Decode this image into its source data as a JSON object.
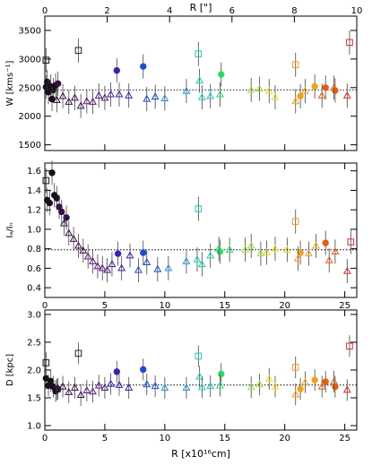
{
  "chart_data": [
    {
      "id": "W",
      "type": "scatter",
      "ylabel": "W [kms⁻¹]",
      "ylim": [
        1400,
        3750
      ],
      "yticks": [
        1500,
        2000,
        2500,
        3000,
        3500
      ],
      "reference_line": 2460,
      "series": [
        {
          "marker": "circle",
          "points": [
            [
              0.1,
              2510
            ],
            [
              0.2,
              2600
            ],
            [
              0.3,
              2420
            ],
            [
              0.5,
              2520
            ],
            [
              0.7,
              2460
            ],
            [
              0.9,
              2540
            ],
            [
              1.1,
              2570
            ],
            [
              0.6,
              2300
            ],
            [
              6.0,
              2800
            ],
            [
              8.2,
              2870
            ],
            [
              14.7,
              2730
            ],
            [
              21.3,
              2350
            ],
            [
              22.5,
              2520
            ],
            [
              23.4,
              2500
            ],
            [
              24.2,
              2450
            ]
          ]
        },
        {
          "marker": "square",
          "points": [
            [
              0.1,
              2980
            ],
            [
              2.8,
              3150
            ],
            [
              12.8,
              3090
            ],
            [
              20.9,
              2900
            ],
            [
              25.4,
              3290
            ]
          ]
        },
        {
          "marker": "triangle",
          "points": [
            [
              1.0,
              2280
            ],
            [
              1.5,
              2350
            ],
            [
              2.0,
              2250
            ],
            [
              2.5,
              2320
            ],
            [
              3.0,
              2180
            ],
            [
              3.5,
              2260
            ],
            [
              4.0,
              2250
            ],
            [
              4.5,
              2360
            ],
            [
              5.0,
              2320
            ],
            [
              5.5,
              2380
            ],
            [
              6.2,
              2380
            ],
            [
              7.0,
              2360
            ],
            [
              8.5,
              2300
            ],
            [
              9.2,
              2340
            ],
            [
              10.0,
              2310
            ],
            [
              11.8,
              2440
            ],
            [
              12.9,
              2620
            ],
            [
              13.1,
              2330
            ],
            [
              13.8,
              2350
            ],
            [
              14.6,
              2380
            ],
            [
              17.2,
              2460
            ],
            [
              17.9,
              2480
            ],
            [
              18.7,
              2440
            ],
            [
              19.2,
              2330
            ],
            [
              20.9,
              2260
            ],
            [
              21.7,
              2440
            ],
            [
              23.1,
              2360
            ],
            [
              24.1,
              2500
            ],
            [
              25.2,
              2360
            ]
          ]
        }
      ]
    },
    {
      "id": "ratio",
      "type": "scatter",
      "ylabel": "Iₐ/Iₙ",
      "ylim": [
        0.3,
        1.68
      ],
      "yticks": [
        0.4,
        0.6,
        0.8,
        1.0,
        1.2,
        1.4,
        1.6
      ],
      "reference_line": 0.79,
      "series": [
        {
          "marker": "circle",
          "points": [
            [
              0.2,
              1.3
            ],
            [
              0.4,
              1.27
            ],
            [
              0.6,
              1.58
            ],
            [
              0.8,
              1.35
            ],
            [
              1.0,
              1.32
            ],
            [
              1.2,
              1.23
            ],
            [
              1.4,
              1.18
            ],
            [
              1.8,
              1.12
            ],
            [
              6.1,
              0.75
            ],
            [
              8.2,
              0.76
            ],
            [
              14.6,
              0.77
            ],
            [
              21.3,
              0.76
            ],
            [
              23.4,
              0.86
            ]
          ]
        },
        {
          "marker": "square",
          "points": [
            [
              0.1,
              1.5
            ],
            [
              12.8,
              1.21
            ],
            [
              20.9,
              1.08
            ],
            [
              25.5,
              0.87
            ]
          ]
        },
        {
          "marker": "triangle",
          "points": [
            [
              1.6,
              1.06
            ],
            [
              2.0,
              0.96
            ],
            [
              2.4,
              0.9
            ],
            [
              2.8,
              0.83
            ],
            [
              3.2,
              0.78
            ],
            [
              3.6,
              0.72
            ],
            [
              4.0,
              0.67
            ],
            [
              4.4,
              0.62
            ],
            [
              4.8,
              0.6
            ],
            [
              5.2,
              0.58
            ],
            [
              5.6,
              0.64
            ],
            [
              6.4,
              0.6
            ],
            [
              7.1,
              0.73
            ],
            [
              7.8,
              0.58
            ],
            [
              8.5,
              0.66
            ],
            [
              9.4,
              0.59
            ],
            [
              10.3,
              0.6
            ],
            [
              11.8,
              0.67
            ],
            [
              12.7,
              0.69
            ],
            [
              13.1,
              0.64
            ],
            [
              13.8,
              0.73
            ],
            [
              14.5,
              0.8
            ],
            [
              15.4,
              0.79
            ],
            [
              16.7,
              0.79
            ],
            [
              17.2,
              0.83
            ],
            [
              18.0,
              0.75
            ],
            [
              18.5,
              0.76
            ],
            [
              19.2,
              0.8
            ],
            [
              20.2,
              0.79
            ],
            [
              21.1,
              0.7
            ],
            [
              22.0,
              0.75
            ],
            [
              22.6,
              0.83
            ],
            [
              23.7,
              0.68
            ],
            [
              24.2,
              0.77
            ],
            [
              25.2,
              0.57
            ]
          ]
        }
      ]
    },
    {
      "id": "D",
      "type": "scatter",
      "xlabel": "R [x10¹⁶cm]",
      "ylabel": "D [kpc]",
      "ylim": [
        0.92,
        3.08
      ],
      "yticks": [
        1.0,
        1.5,
        2.0,
        2.5,
        3.0
      ],
      "reference_line": 1.73,
      "series": [
        {
          "marker": "circle",
          "points": [
            [
              0.1,
              1.85
            ],
            [
              0.3,
              1.72
            ],
            [
              0.5,
              1.8
            ],
            [
              0.7,
              1.7
            ],
            [
              0.9,
              1.62
            ],
            [
              1.1,
              1.66
            ],
            [
              6.0,
              1.97
            ],
            [
              8.2,
              2.01
            ],
            [
              14.7,
              1.93
            ],
            [
              21.3,
              1.66
            ],
            [
              22.5,
              1.82
            ],
            [
              23.4,
              1.79
            ],
            [
              24.2,
              1.7
            ]
          ]
        },
        {
          "marker": "square",
          "points": [
            [
              0.1,
              2.13
            ],
            [
              2.8,
              2.3
            ],
            [
              12.8,
              2.25
            ],
            [
              20.9,
              2.05
            ],
            [
              25.4,
              2.43
            ]
          ]
        },
        {
          "marker": "triangle",
          "points": [
            [
              1.0,
              1.65
            ],
            [
              1.5,
              1.7
            ],
            [
              2.0,
              1.6
            ],
            [
              2.5,
              1.68
            ],
            [
              3.0,
              1.55
            ],
            [
              3.5,
              1.63
            ],
            [
              4.0,
              1.61
            ],
            [
              4.5,
              1.72
            ],
            [
              5.0,
              1.68
            ],
            [
              5.5,
              1.75
            ],
            [
              6.2,
              1.73
            ],
            [
              7.0,
              1.68
            ],
            [
              8.5,
              1.74
            ],
            [
              9.2,
              1.71
            ],
            [
              10.0,
              1.68
            ],
            [
              11.8,
              1.68
            ],
            [
              12.9,
              1.88
            ],
            [
              13.1,
              1.69
            ],
            [
              13.8,
              1.71
            ],
            [
              14.6,
              1.72
            ],
            [
              17.2,
              1.69
            ],
            [
              17.9,
              1.74
            ],
            [
              18.7,
              1.84
            ],
            [
              19.2,
              1.7
            ],
            [
              20.9,
              1.56
            ],
            [
              21.7,
              1.78
            ],
            [
              23.1,
              1.7
            ],
            [
              24.1,
              1.79
            ],
            [
              25.2,
              1.64
            ]
          ]
        }
      ]
    }
  ],
  "axes": {
    "bottom_xlim": [
      0,
      26
    ],
    "bottom_xticks": [
      0,
      5,
      10,
      15,
      20,
      25
    ],
    "top_xlabel": "R [\"]",
    "top_xlim": [
      0,
      10
    ],
    "top_xticks": [
      0,
      2,
      4,
      6,
      8,
      10
    ]
  },
  "colors": {
    "colormap": [
      "#1a0f1f",
      "#3a0f46",
      "#5a1a7a",
      "#3326a8",
      "#1f4ad4",
      "#1f96d8",
      "#22c8b8",
      "#2bd96a",
      "#9fdf3c",
      "#e8dd30",
      "#f0a020",
      "#e06010",
      "#d82a2a"
    ],
    "errorbar": "#444444",
    "axis": "#000000"
  }
}
